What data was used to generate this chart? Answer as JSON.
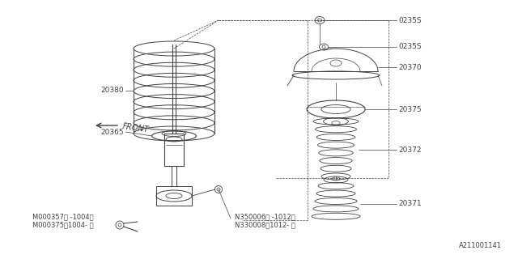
{
  "bg_color": "#ffffff",
  "line_color": "#404040",
  "diagram_id": "A211001141",
  "font_size": 6.5,
  "label_texts": {
    "0235S_top": "0235S",
    "0235S_mid": "0235S",
    "20370": "20370",
    "20375": "20375",
    "20372": "20372",
    "20371": "20371",
    "20380": "20380",
    "20365": "20365",
    "M000357": "M000357（ -1004）",
    "M000375": "M000375（1004- ）",
    "N350006": "N350006（ -1012）",
    "N330008": "N330008（1012- ）"
  }
}
